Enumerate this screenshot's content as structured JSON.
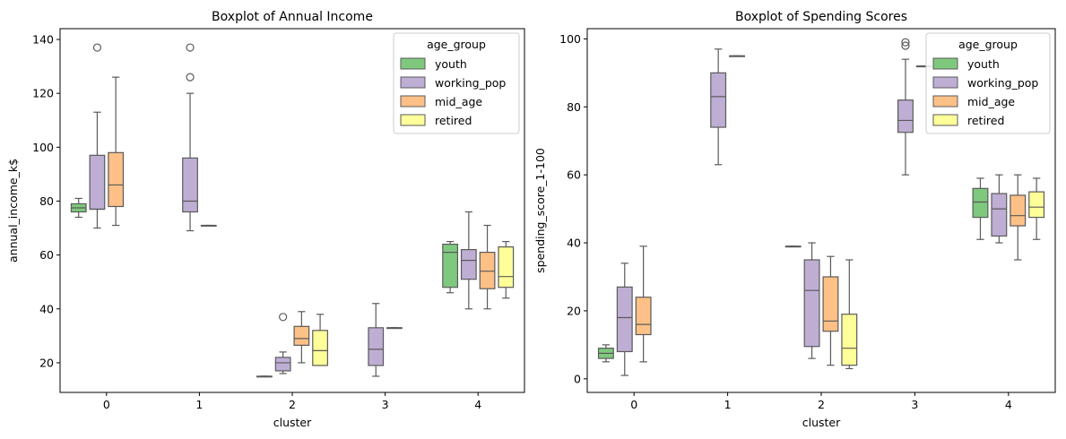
{
  "chart_data": [
    {
      "type": "boxplot",
      "title": "Boxplot of Annual Income",
      "xlabel": "cluster",
      "ylabel": "annual_income_k$",
      "categories": [
        "0",
        "1",
        "2",
        "3",
        "4"
      ],
      "ylim": [
        9,
        144
      ],
      "yticks": [
        20,
        40,
        60,
        80,
        100,
        120,
        140
      ],
      "legend": {
        "title": "age_group",
        "position": "top-right"
      },
      "series": [
        {
          "name": "youth",
          "color": "#7fc97f",
          "boxes": [
            {
              "category": "0",
              "whislo": 74,
              "q1": 76,
              "med": 77.5,
              "q3": 79,
              "whishi": 81,
              "fliers": []
            },
            {
              "category": "2",
              "whislo": 15,
              "q1": 15,
              "med": 15,
              "q3": 15,
              "whishi": 15,
              "fliers": []
            },
            {
              "category": "4",
              "whislo": 46,
              "q1": 48,
              "med": 61,
              "q3": 64,
              "whishi": 65,
              "fliers": []
            }
          ]
        },
        {
          "name": "working_pop",
          "color": "#beaed4",
          "boxes": [
            {
              "category": "0",
              "whislo": 70,
              "q1": 77,
              "med": 77,
              "q3": 97,
              "whishi": 113,
              "fliers": [
                137
              ]
            },
            {
              "category": "1",
              "whislo": 69,
              "q1": 76,
              "med": 80,
              "q3": 96,
              "whishi": 120,
              "fliers": [
                126,
                137
              ]
            },
            {
              "category": "2",
              "whislo": 16,
              "q1": 17,
              "med": 20,
              "q3": 22,
              "whishi": 24,
              "fliers": [
                37
              ]
            },
            {
              "category": "3",
              "whislo": 15,
              "q1": 19,
              "med": 25,
              "q3": 33,
              "whishi": 42,
              "fliers": []
            },
            {
              "category": "4",
              "whislo": 40,
              "q1": 51,
              "med": 58,
              "q3": 62,
              "whishi": 76,
              "fliers": []
            }
          ]
        },
        {
          "name": "mid_age",
          "color": "#fdc086",
          "boxes": [
            {
              "category": "0",
              "whislo": 71,
              "q1": 78,
              "med": 86,
              "q3": 98,
              "whishi": 126,
              "fliers": []
            },
            {
              "category": "1",
              "whislo": 71,
              "q1": 71,
              "med": 71,
              "q3": 71,
              "whishi": 71,
              "fliers": []
            },
            {
              "category": "2",
              "whislo": 20,
              "q1": 26.5,
              "med": 29,
              "q3": 33.5,
              "whishi": 39,
              "fliers": []
            },
            {
              "category": "3",
              "whislo": 33,
              "q1": 33,
              "med": 33,
              "q3": 33,
              "whishi": 33,
              "fliers": []
            },
            {
              "category": "4",
              "whislo": 40,
              "q1": 47.5,
              "med": 54,
              "q3": 61,
              "whishi": 71,
              "fliers": []
            }
          ]
        },
        {
          "name": "retired",
          "color": "#ffff99",
          "boxes": [
            {
              "category": "2",
              "whislo": 19,
              "q1": 19,
              "med": 24.5,
              "q3": 32,
              "whishi": 38,
              "fliers": []
            },
            {
              "category": "4",
              "whislo": 44,
              "q1": 48,
              "med": 52,
              "q3": 63,
              "whishi": 65,
              "fliers": []
            }
          ]
        }
      ]
    },
    {
      "type": "boxplot",
      "title": "Boxplot of Spending Scores",
      "xlabel": "cluster",
      "ylabel": "spending_score_1-100",
      "categories": [
        "0",
        "1",
        "2",
        "3",
        "4"
      ],
      "ylim": [
        -4,
        103
      ],
      "yticks": [
        0,
        20,
        40,
        60,
        80,
        100
      ],
      "legend": {
        "title": "age_group",
        "position": "top-right"
      },
      "series": [
        {
          "name": "youth",
          "color": "#7fc97f",
          "boxes": [
            {
              "category": "0",
              "whislo": 5,
              "q1": 6,
              "med": 7.5,
              "q3": 9,
              "whishi": 10,
              "fliers": []
            },
            {
              "category": "2",
              "whislo": 39,
              "q1": 39,
              "med": 39,
              "q3": 39,
              "whishi": 39,
              "fliers": []
            },
            {
              "category": "4",
              "whislo": 41,
              "q1": 47.5,
              "med": 52,
              "q3": 56,
              "whishi": 59,
              "fliers": []
            }
          ]
        },
        {
          "name": "working_pop",
          "color": "#beaed4",
          "boxes": [
            {
              "category": "0",
              "whislo": 1,
              "q1": 8,
              "med": 18,
              "q3": 27,
              "whishi": 34,
              "fliers": []
            },
            {
              "category": "1",
              "whislo": 63,
              "q1": 74,
              "med": 83,
              "q3": 90,
              "whishi": 97,
              "fliers": []
            },
            {
              "category": "2",
              "whislo": 6,
              "q1": 9.5,
              "med": 26,
              "q3": 35,
              "whishi": 40,
              "fliers": []
            },
            {
              "category": "3",
              "whislo": 60,
              "q1": 72.5,
              "med": 76,
              "q3": 82,
              "whishi": 94,
              "fliers": [
                98,
                99
              ]
            },
            {
              "category": "4",
              "whislo": 40,
              "q1": 42,
              "med": 50,
              "q3": 54.5,
              "whishi": 60,
              "fliers": []
            }
          ]
        },
        {
          "name": "mid_age",
          "color": "#fdc086",
          "boxes": [
            {
              "category": "0",
              "whislo": 5,
              "q1": 13,
              "med": 16,
              "q3": 24,
              "whishi": 39,
              "fliers": []
            },
            {
              "category": "1",
              "whislo": 95,
              "q1": 95,
              "med": 95,
              "q3": 95,
              "whishi": 95,
              "fliers": []
            },
            {
              "category": "2",
              "whislo": 4,
              "q1": 14,
              "med": 17,
              "q3": 30,
              "whishi": 36,
              "fliers": []
            },
            {
              "category": "3",
              "whislo": 92,
              "q1": 92,
              "med": 92,
              "q3": 92,
              "whishi": 92,
              "fliers": []
            },
            {
              "category": "4",
              "whislo": 35,
              "q1": 45,
              "med": 48,
              "q3": 54,
              "whishi": 60,
              "fliers": []
            }
          ]
        },
        {
          "name": "retired",
          "color": "#ffff99",
          "boxes": [
            {
              "category": "2",
              "whislo": 3,
              "q1": 4,
              "med": 9,
              "q3": 19,
              "whishi": 35,
              "fliers": []
            },
            {
              "category": "4",
              "whislo": 41,
              "q1": 47.5,
              "med": 50.5,
              "q3": 55,
              "whishi": 59,
              "fliers": []
            }
          ]
        }
      ]
    }
  ]
}
